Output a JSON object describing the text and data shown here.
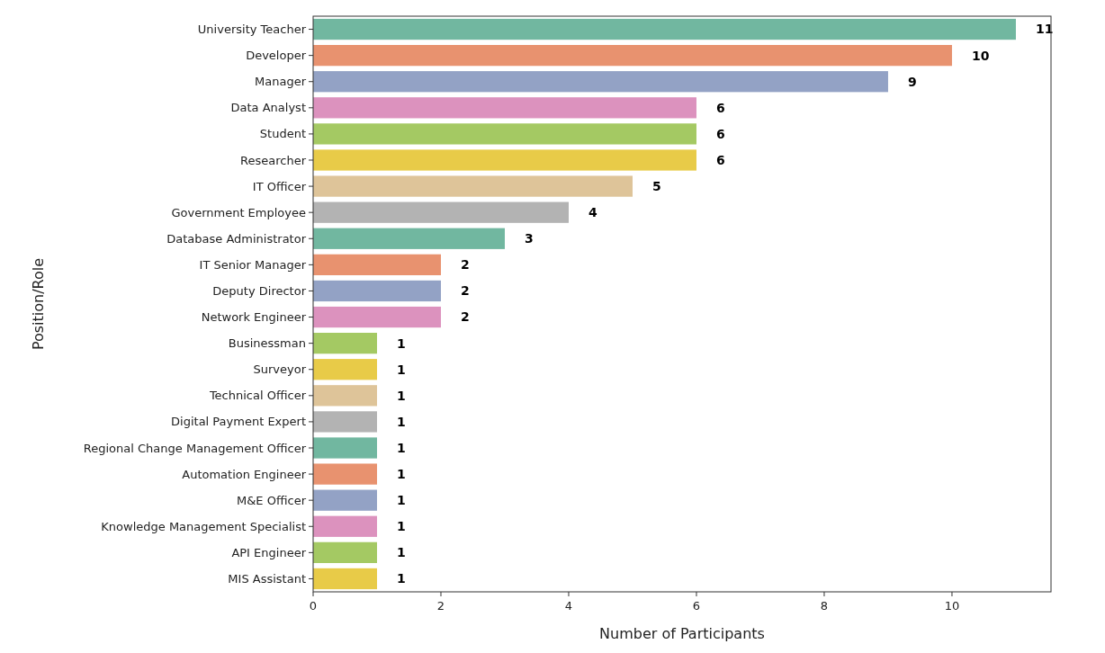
{
  "chart_data": {
    "type": "bar",
    "orientation": "horizontal",
    "xlabel": "Number of Participants",
    "ylabel": "Position/Role",
    "categories": [
      "University Teacher",
      "Developer",
      "Manager",
      "Data Analyst",
      "Student",
      "Researcher",
      "IT Officer",
      "Government Employee",
      "Database Administrator",
      "IT Senior Manager",
      "Deputy Director",
      "Network Engineer",
      "Businessman",
      "Surveyor",
      "Technical Officer",
      "Digital Payment Expert",
      "Regional Change Management Officer",
      "Automation Engineer",
      "M&E Officer",
      "Knowledge Management Specialist",
      "API Engineer",
      "MIS Assistant"
    ],
    "values": [
      11,
      10,
      9,
      6,
      6,
      6,
      5,
      4,
      3,
      2,
      2,
      2,
      1,
      1,
      1,
      1,
      1,
      1,
      1,
      1,
      1,
      1
    ],
    "colors": [
      "#71b7a0",
      "#e8926f",
      "#93a2c5",
      "#dc92be",
      "#a4c963",
      "#e8cb48",
      "#dec499",
      "#b3b3b3",
      "#71b7a0",
      "#e8926f",
      "#93a2c5",
      "#dc92be",
      "#a4c963",
      "#e8cb48",
      "#dec499",
      "#b3b3b3",
      "#71b7a0",
      "#e8926f",
      "#93a2c5",
      "#dc92be",
      "#a4c963",
      "#e8cb48"
    ],
    "xlim": [
      0,
      11.55
    ],
    "xticks": [
      0,
      2,
      4,
      6,
      8,
      10
    ],
    "data_labels": true,
    "grid": false
  }
}
